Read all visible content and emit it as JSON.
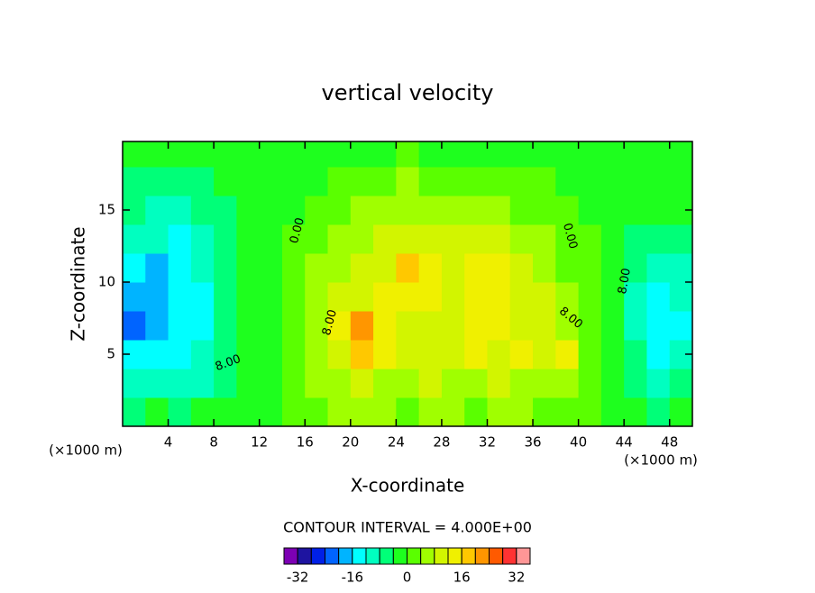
{
  "chart_data": {
    "type": "contour",
    "title": "vertical velocity",
    "x_label": "X-coordinate",
    "y_label": "Z-coordinate",
    "x_unit_label": "(×1000 m)",
    "footer": "CONTOUR INTERVAL = 4.000E+00",
    "xlim": [
      0,
      50
    ],
    "ylim": [
      0,
      19.75
    ],
    "xticks": [
      4,
      8,
      12,
      16,
      20,
      24,
      28,
      32,
      36,
      40,
      44,
      48
    ],
    "yticks": [
      5,
      10,
      15
    ],
    "x": [
      1,
      3,
      5,
      7,
      9,
      11,
      13,
      15,
      17,
      19,
      21,
      23,
      25,
      27,
      29,
      31,
      33,
      35,
      37,
      39,
      41,
      43,
      45,
      47,
      49
    ],
    "z": [
      1,
      3,
      5,
      7,
      9,
      11,
      13,
      15,
      17,
      19
    ],
    "values": [
      [
        -6,
        -4,
        -6,
        -4,
        -2,
        -1,
        -1,
        1,
        3,
        4,
        6,
        5,
        3,
        4,
        5,
        3,
        4,
        5,
        3,
        2,
        1,
        -1,
        -3,
        -5,
        -4
      ],
      [
        -10,
        -9,
        -12,
        -9,
        -6,
        -3,
        -1,
        2,
        5,
        7,
        10,
        7,
        6,
        8,
        7,
        6,
        8,
        7,
        6,
        6,
        2,
        -2,
        -5,
        -10,
        -8
      ],
      [
        -14,
        -15,
        -14,
        -12,
        -6,
        -4,
        -1,
        2,
        6,
        10,
        19,
        12,
        9,
        10,
        9,
        12,
        10,
        13,
        9,
        13,
        3,
        -3,
        -8,
        -14,
        -12
      ],
      [
        -21,
        -18,
        -15,
        -13,
        -7,
        -4,
        -1,
        2,
        7,
        12,
        21,
        13,
        10,
        11,
        11,
        13,
        14,
        10,
        9,
        7,
        3,
        -4,
        -10,
        -14,
        -15
      ],
      [
        -20,
        -18,
        -15,
        -13,
        -8,
        -4,
        -1,
        1,
        6,
        10,
        11,
        12,
        14,
        12,
        11,
        14,
        13,
        10,
        8,
        5,
        2,
        -4,
        -10,
        -13,
        -12
      ],
      [
        -14,
        -17,
        -14,
        -12,
        -7,
        -4,
        -1,
        1,
        4,
        6,
        9,
        11,
        18,
        14,
        11,
        13,
        14,
        9,
        6,
        3,
        1,
        -4,
        -8,
        -10,
        -9
      ],
      [
        -11,
        -12,
        -13,
        -11,
        -7,
        -4,
        -1,
        0,
        2,
        4,
        6,
        8,
        10,
        10,
        8,
        8,
        8,
        6,
        4,
        2,
        0,
        -3,
        -6,
        -7,
        -6
      ],
      [
        -8,
        -9,
        -10,
        -8,
        -6,
        -3,
        -1,
        -1,
        1,
        3,
        5,
        6,
        6,
        6,
        5,
        5,
        4,
        3,
        2,
        0,
        -1,
        -2,
        -4,
        -4,
        -3
      ],
      [
        -5,
        -6,
        -6,
        -5,
        -4,
        -2,
        -1,
        -1,
        -1,
        1,
        2,
        3,
        4,
        3,
        2,
        1,
        1,
        1,
        0,
        -1,
        -1,
        -1,
        -2,
        -2,
        -2
      ],
      [
        -3,
        -3,
        -3,
        -3,
        -2,
        -1,
        -1,
        -1,
        -1,
        -1,
        -1,
        -1,
        0,
        -1,
        -1,
        -1,
        -1,
        -1,
        -1,
        -1,
        -1,
        -1,
        -1,
        -1,
        -1
      ]
    ],
    "levels": [
      -36,
      -32,
      -28,
      -24,
      -20,
      -16,
      -12,
      -8,
      -4,
      0,
      4,
      8,
      12,
      16,
      20,
      24,
      28,
      32,
      36
    ],
    "colors": [
      "#7d00b4",
      "#1e14a0",
      "#0020e6",
      "#0064ff",
      "#00b4ff",
      "#00ffff",
      "#00ffc0",
      "#00ff78",
      "#1eff1e",
      "#5aff00",
      "#a0ff00",
      "#d2f500",
      "#f0f000",
      "#ffc800",
      "#ff9600",
      "#ff5a00",
      "#ff3232",
      "#ff9696"
    ],
    "colorbar_ticks": [
      -32,
      -16,
      0,
      16,
      32
    ],
    "contour_labels": [
      "0.00",
      "0.00",
      "8.00",
      "8.00",
      "8.00",
      "8.00"
    ]
  }
}
